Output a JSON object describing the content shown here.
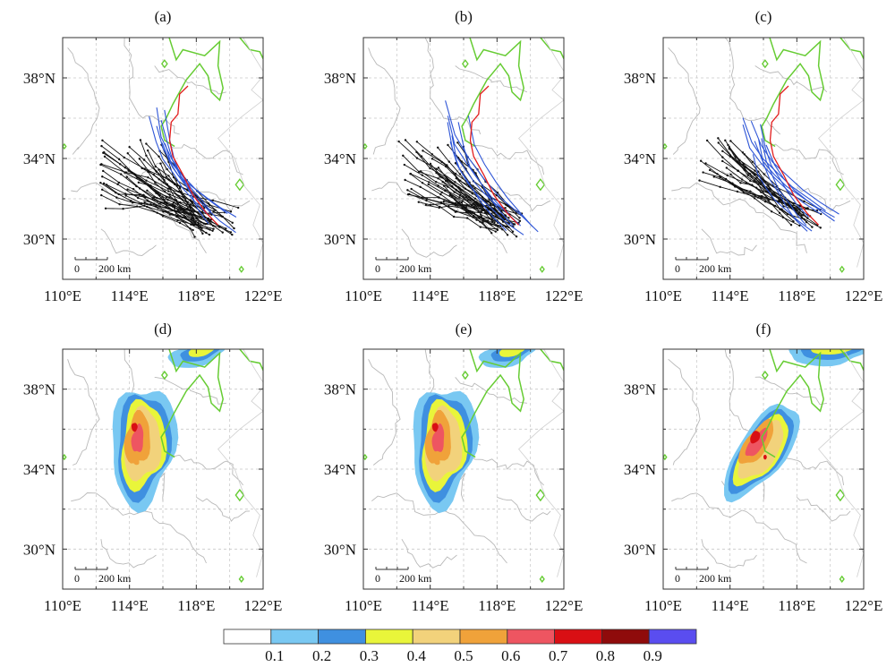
{
  "panels": [
    {
      "label": "(a)",
      "kind": "track"
    },
    {
      "label": "(b)",
      "kind": "track"
    },
    {
      "label": "(c)",
      "kind": "track"
    },
    {
      "label": "(d)",
      "kind": "prob"
    },
    {
      "label": "(e)",
      "kind": "prob"
    },
    {
      "label": "(f)",
      "kind": "prob"
    }
  ],
  "axes": {
    "lon_ticks": [
      "110°E",
      "114°E",
      "118°E",
      "122°E"
    ],
    "lat_ticks": [
      "38°N",
      "34°N",
      "30°N"
    ],
    "lon_range": [
      110,
      122
    ],
    "lat_range": [
      28,
      40
    ]
  },
  "scalebar": {
    "zero": "0",
    "label": "200 km"
  },
  "colorbar": {
    "colors": [
      "#ffffff",
      "#79c8f2",
      "#3f90e0",
      "#e9f53a",
      "#f2d27b",
      "#f0a23a",
      "#ee5561",
      "#d90f14",
      "#8f0b0b",
      "#5a4df0"
    ],
    "ticks": [
      "0.1",
      "0.2",
      "0.3",
      "0.4",
      "0.5",
      "0.6",
      "0.7",
      "0.8",
      "0.9"
    ]
  },
  "legend_colors": {
    "track_black": "#111111",
    "track_blue": "#2f56d6",
    "track_red": "#e21b1b",
    "contour_green": "#66cc33"
  }
}
